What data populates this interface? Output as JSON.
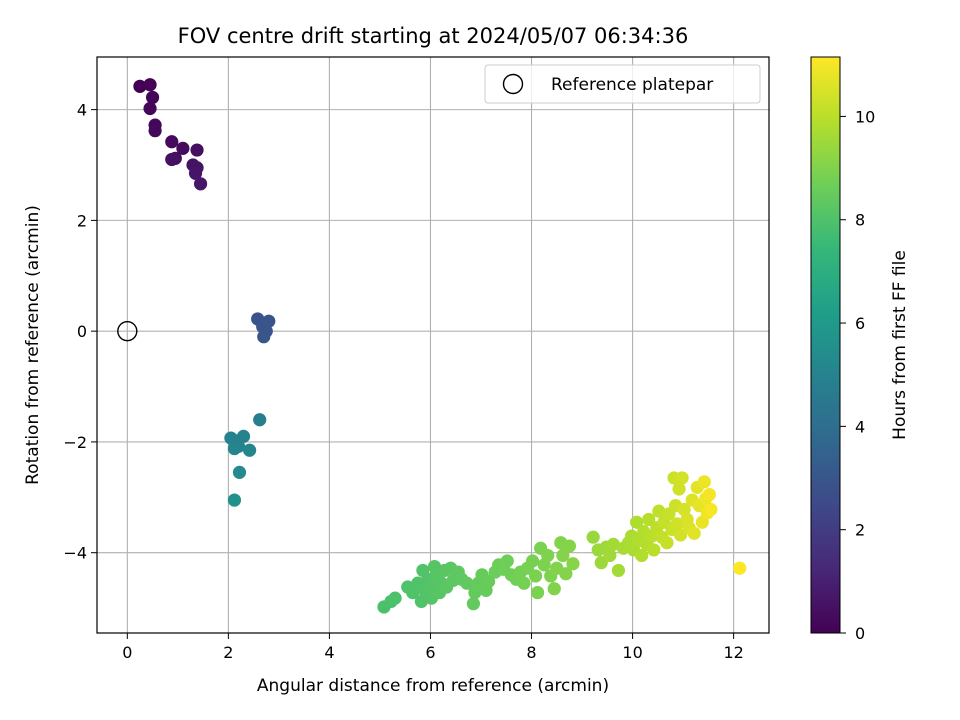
{
  "chart_data": {
    "type": "scatter",
    "title": "FOV centre drift starting at 2024/05/07 06:34:36",
    "xlabel": "Angular distance from reference (arcmin)",
    "ylabel": "Rotation from reference (arcmin)",
    "xlim": [
      -0.6,
      12.7
    ],
    "ylim": [
      -5.45,
      4.95
    ],
    "xticks": [
      0,
      2,
      4,
      6,
      8,
      10,
      12
    ],
    "yticks": [
      -4,
      -2,
      0,
      2,
      4
    ],
    "grid": true,
    "legend": {
      "placement": "upper right",
      "entries": [
        "Reference platepar"
      ]
    },
    "reference_point": {
      "x": 0,
      "y": 0,
      "label": "Reference platepar"
    },
    "colorbar": {
      "label": "Hours from first FF file",
      "range": [
        0,
        11.15
      ],
      "ticks": [
        0,
        2,
        4,
        6,
        8,
        10
      ],
      "colormap": "viridis"
    },
    "series": [
      {
        "values": [
          {
            "x": 0.25,
            "y": 4.42,
            "c": 0.0
          },
          {
            "x": 0.45,
            "y": 4.45,
            "c": 0.05
          },
          {
            "x": 0.5,
            "y": 4.22,
            "c": 0.1
          },
          {
            "x": 0.45,
            "y": 4.02,
            "c": 0.15
          },
          {
            "x": 0.55,
            "y": 3.72,
            "c": 0.2
          },
          {
            "x": 0.55,
            "y": 3.62,
            "c": 0.25
          },
          {
            "x": 0.88,
            "y": 3.42,
            "c": 0.3
          },
          {
            "x": 1.1,
            "y": 3.3,
            "c": 0.35
          },
          {
            "x": 1.38,
            "y": 3.27,
            "c": 0.4
          },
          {
            "x": 0.95,
            "y": 3.12,
            "c": 0.45
          },
          {
            "x": 0.88,
            "y": 3.1,
            "c": 0.5
          },
          {
            "x": 1.3,
            "y": 3.0,
            "c": 0.55
          },
          {
            "x": 1.38,
            "y": 2.95,
            "c": 0.6
          },
          {
            "x": 1.35,
            "y": 2.85,
            "c": 0.65
          },
          {
            "x": 1.45,
            "y": 2.66,
            "c": 0.7
          },
          {
            "x": 2.58,
            "y": 0.22,
            "c": 2.9
          },
          {
            "x": 2.8,
            "y": 0.18,
            "c": 2.92
          },
          {
            "x": 2.68,
            "y": 0.08,
            "c": 2.95
          },
          {
            "x": 2.75,
            "y": 0.0,
            "c": 2.97
          },
          {
            "x": 2.7,
            "y": -0.1,
            "c": 3.0
          },
          {
            "x": 2.62,
            "y": -1.6,
            "c": 4.8
          },
          {
            "x": 2.05,
            "y": -1.93,
            "c": 4.9
          },
          {
            "x": 2.3,
            "y": -1.9,
            "c": 4.95
          },
          {
            "x": 2.15,
            "y": -1.98,
            "c": 5.0
          },
          {
            "x": 2.2,
            "y": -2.08,
            "c": 5.02
          },
          {
            "x": 2.12,
            "y": -2.12,
            "c": 5.05
          },
          {
            "x": 2.42,
            "y": -2.15,
            "c": 5.1
          },
          {
            "x": 2.22,
            "y": -2.55,
            "c": 5.3
          },
          {
            "x": 2.12,
            "y": -3.05,
            "c": 5.6
          },
          {
            "x": 5.08,
            "y": -4.98,
            "c": 7.9
          },
          {
            "x": 5.22,
            "y": -4.88,
            "c": 7.92
          },
          {
            "x": 5.3,
            "y": -4.82,
            "c": 7.95
          },
          {
            "x": 5.55,
            "y": -4.62,
            "c": 8.0
          },
          {
            "x": 5.65,
            "y": -4.72,
            "c": 8.0
          },
          {
            "x": 5.75,
            "y": -4.55,
            "c": 8.02
          },
          {
            "x": 5.82,
            "y": -4.88,
            "c": 8.05
          },
          {
            "x": 5.85,
            "y": -4.32,
            "c": 8.05
          },
          {
            "x": 5.9,
            "y": -4.7,
            "c": 8.1
          },
          {
            "x": 5.95,
            "y": -4.48,
            "c": 8.1
          },
          {
            "x": 6.02,
            "y": -4.82,
            "c": 8.12
          },
          {
            "x": 6.05,
            "y": -4.6,
            "c": 8.15
          },
          {
            "x": 6.08,
            "y": -4.25,
            "c": 8.15
          },
          {
            "x": 6.12,
            "y": -4.4,
            "c": 8.18
          },
          {
            "x": 6.18,
            "y": -4.72,
            "c": 8.2
          },
          {
            "x": 6.22,
            "y": -4.55,
            "c": 8.2
          },
          {
            "x": 6.28,
            "y": -4.32,
            "c": 8.22
          },
          {
            "x": 6.32,
            "y": -4.62,
            "c": 8.25
          },
          {
            "x": 6.4,
            "y": -4.28,
            "c": 8.28
          },
          {
            "x": 6.45,
            "y": -4.5,
            "c": 8.3
          },
          {
            "x": 6.55,
            "y": -4.35,
            "c": 8.32
          },
          {
            "x": 6.62,
            "y": -4.48,
            "c": 8.35
          },
          {
            "x": 6.72,
            "y": -4.55,
            "c": 8.4
          },
          {
            "x": 6.85,
            "y": -4.92,
            "c": 8.45
          },
          {
            "x": 6.88,
            "y": -4.72,
            "c": 8.45
          },
          {
            "x": 6.95,
            "y": -4.55,
            "c": 8.48
          },
          {
            "x": 7.02,
            "y": -4.4,
            "c": 8.5
          },
          {
            "x": 7.1,
            "y": -4.68,
            "c": 8.52
          },
          {
            "x": 7.15,
            "y": -4.52,
            "c": 8.55
          },
          {
            "x": 7.28,
            "y": -4.35,
            "c": 8.6
          },
          {
            "x": 7.35,
            "y": -4.22,
            "c": 8.62
          },
          {
            "x": 7.45,
            "y": -4.3,
            "c": 8.65
          },
          {
            "x": 7.52,
            "y": -4.15,
            "c": 8.68
          },
          {
            "x": 7.6,
            "y": -4.4,
            "c": 8.7
          },
          {
            "x": 7.7,
            "y": -4.48,
            "c": 8.75
          },
          {
            "x": 7.78,
            "y": -4.35,
            "c": 8.78
          },
          {
            "x": 7.85,
            "y": -4.55,
            "c": 8.8
          },
          {
            "x": 7.92,
            "y": -4.28,
            "c": 8.82
          },
          {
            "x": 8.02,
            "y": -4.15,
            "c": 8.85
          },
          {
            "x": 8.08,
            "y": -4.42,
            "c": 8.88
          },
          {
            "x": 8.12,
            "y": -4.72,
            "c": 8.9
          },
          {
            "x": 8.18,
            "y": -3.92,
            "c": 8.9
          },
          {
            "x": 8.25,
            "y": -4.22,
            "c": 8.92
          },
          {
            "x": 8.32,
            "y": -4.05,
            "c": 8.95
          },
          {
            "x": 8.38,
            "y": -4.42,
            "c": 8.97
          },
          {
            "x": 8.45,
            "y": -4.65,
            "c": 9.0
          },
          {
            "x": 8.5,
            "y": -4.28,
            "c": 9.0
          },
          {
            "x": 8.58,
            "y": -3.82,
            "c": 9.02
          },
          {
            "x": 8.62,
            "y": -4.05,
            "c": 9.05
          },
          {
            "x": 8.68,
            "y": -4.38,
            "c": 9.05
          },
          {
            "x": 8.75,
            "y": -3.88,
            "c": 9.08
          },
          {
            "x": 8.82,
            "y": -4.2,
            "c": 9.1
          },
          {
            "x": 9.22,
            "y": -3.72,
            "c": 9.4
          },
          {
            "x": 9.32,
            "y": -3.95,
            "c": 9.45
          },
          {
            "x": 9.38,
            "y": -4.18,
            "c": 9.48
          },
          {
            "x": 9.48,
            "y": -3.9,
            "c": 9.52
          },
          {
            "x": 9.55,
            "y": -4.05,
            "c": 9.55
          },
          {
            "x": 9.62,
            "y": -3.85,
            "c": 9.6
          },
          {
            "x": 9.72,
            "y": -4.32,
            "c": 9.62
          },
          {
            "x": 9.82,
            "y": -3.92,
            "c": 9.68
          },
          {
            "x": 9.92,
            "y": -3.82,
            "c": 9.72
          },
          {
            "x": 9.98,
            "y": -3.7,
            "c": 9.75
          },
          {
            "x": 10.02,
            "y": -3.95,
            "c": 9.78
          },
          {
            "x": 10.08,
            "y": -3.45,
            "c": 9.8
          },
          {
            "x": 10.12,
            "y": -3.78,
            "c": 9.82
          },
          {
            "x": 10.18,
            "y": -4.05,
            "c": 9.85
          },
          {
            "x": 10.22,
            "y": -3.62,
            "c": 9.88
          },
          {
            "x": 10.28,
            "y": -3.85,
            "c": 9.9
          },
          {
            "x": 10.32,
            "y": -3.4,
            "c": 9.95
          },
          {
            "x": 10.38,
            "y": -3.7,
            "c": 9.98
          },
          {
            "x": 10.42,
            "y": -3.95,
            "c": 10.0
          },
          {
            "x": 10.48,
            "y": -3.55,
            "c": 10.05
          },
          {
            "x": 10.52,
            "y": -3.25,
            "c": 10.08
          },
          {
            "x": 10.58,
            "y": -3.72,
            "c": 10.12
          },
          {
            "x": 10.62,
            "y": -3.45,
            "c": 10.15
          },
          {
            "x": 10.68,
            "y": -3.82,
            "c": 10.2
          },
          {
            "x": 10.72,
            "y": -3.3,
            "c": 10.22
          },
          {
            "x": 10.78,
            "y": -3.58,
            "c": 10.28
          },
          {
            "x": 10.82,
            "y": -2.65,
            "c": 10.3
          },
          {
            "x": 10.85,
            "y": -3.15,
            "c": 10.32
          },
          {
            "x": 10.88,
            "y": -3.48,
            "c": 10.35
          },
          {
            "x": 10.92,
            "y": -2.85,
            "c": 10.38
          },
          {
            "x": 10.95,
            "y": -3.68,
            "c": 10.4
          },
          {
            "x": 10.98,
            "y": -2.65,
            "c": 10.42
          },
          {
            "x": 11.02,
            "y": -3.22,
            "c": 10.48
          },
          {
            "x": 11.08,
            "y": -3.4,
            "c": 10.52
          },
          {
            "x": 11.12,
            "y": -3.55,
            "c": 10.55
          },
          {
            "x": 11.18,
            "y": -3.05,
            "c": 10.6
          },
          {
            "x": 11.22,
            "y": -3.65,
            "c": 10.65
          },
          {
            "x": 11.28,
            "y": -2.82,
            "c": 10.7
          },
          {
            "x": 11.32,
            "y": -3.15,
            "c": 10.75
          },
          {
            "x": 11.38,
            "y": -3.45,
            "c": 10.8
          },
          {
            "x": 11.42,
            "y": -2.72,
            "c": 10.85
          },
          {
            "x": 11.45,
            "y": -3.02,
            "c": 10.9
          },
          {
            "x": 11.48,
            "y": -3.28,
            "c": 10.95
          },
          {
            "x": 11.52,
            "y": -2.95,
            "c": 11.0
          },
          {
            "x": 11.55,
            "y": -3.22,
            "c": 11.05
          },
          {
            "x": 12.12,
            "y": -4.28,
            "c": 11.15
          }
        ]
      }
    ],
    "colors": {
      "reference_marker": "#000000",
      "grid": "#b0b0b0",
      "axes": "#000000"
    }
  }
}
